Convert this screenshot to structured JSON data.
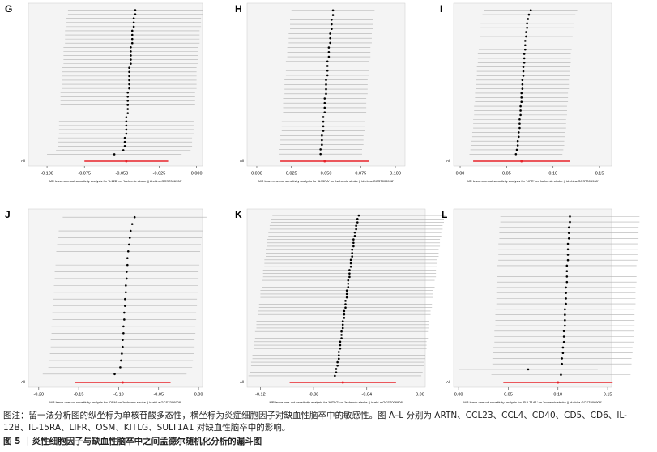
{
  "chart_data": [
    {
      "type": "forest",
      "panel": "G",
      "x_label": "MR leave-one-out sensitivity analysis for 'IL12B' on 'Ischemic stroke || id:ebi-a-GCST006908'",
      "values": [
        -0.041,
        -0.041,
        -0.042,
        -0.042,
        -0.042,
        -0.043,
        -0.043,
        -0.043,
        -0.043,
        -0.044,
        -0.044,
        -0.044,
        -0.044,
        -0.044,
        -0.045,
        -0.045,
        -0.045,
        -0.045,
        -0.045,
        -0.045,
        -0.046,
        -0.046,
        -0.046,
        -0.046,
        -0.046,
        -0.046,
        -0.047,
        -0.047,
        -0.047,
        -0.047,
        -0.047,
        -0.048,
        -0.048,
        -0.048,
        -0.049,
        -0.055
      ],
      "error": 0.045,
      "all_label": "All",
      "all_value": -0.047,
      "all_error": 0.028,
      "xlim": [
        -0.1125,
        0.004
      ],
      "xticks": [
        {
          "value": -0.1,
          "label": "-0.100"
        },
        {
          "value": -0.075,
          "label": "-0.075"
        },
        {
          "value": -0.05,
          "label": "-0.050"
        },
        {
          "value": -0.025,
          "label": "-0.025"
        },
        {
          "value": 0,
          "label": "0.000"
        }
      ],
      "point_color": "#000000",
      "line_color": "#b0b0b0",
      "all_color": "#e8232a"
    },
    {
      "type": "forest",
      "panel": "H",
      "x_label": "MR leave-one-out sensitivity analysis for 'IL15RA' on 'Ischemic stroke || id:ebi-a-GCST006908'",
      "values": [
        0.055,
        0.055,
        0.054,
        0.054,
        0.054,
        0.053,
        0.053,
        0.053,
        0.052,
        0.052,
        0.052,
        0.051,
        0.051,
        0.051,
        0.051,
        0.05,
        0.05,
        0.05,
        0.05,
        0.049,
        0.049,
        0.049,
        0.049,
        0.048,
        0.048,
        0.048,
        0.048,
        0.047,
        0.047,
        0.047,
        0.046,
        0.046
      ],
      "error": 0.03,
      "all_label": "All",
      "all_value": 0.049,
      "all_error": 0.032,
      "xlim": [
        -0.007,
        0.107
      ],
      "xticks": [
        {
          "value": 0,
          "label": "0.000"
        },
        {
          "value": 0.025,
          "label": "0.025"
        },
        {
          "value": 0.05,
          "label": "0.050"
        },
        {
          "value": 0.075,
          "label": "0.075"
        },
        {
          "value": 0.1,
          "label": "0.100"
        }
      ],
      "point_color": "#000000",
      "line_color": "#b0b0b0",
      "all_color": "#e8232a"
    },
    {
      "type": "forest",
      "panel": "I",
      "x_label": "MR leave-one-out sensitivity analysis for 'LIFR' on 'Ischemic stroke || id:ebi-a-GCST006908'",
      "values": [
        0.076,
        0.074,
        0.073,
        0.072,
        0.072,
        0.071,
        0.071,
        0.07,
        0.07,
        0.07,
        0.069,
        0.069,
        0.069,
        0.068,
        0.068,
        0.068,
        0.067,
        0.067,
        0.067,
        0.066,
        0.066,
        0.066,
        0.065,
        0.065,
        0.065,
        0.064,
        0.064,
        0.064,
        0.063,
        0.063,
        0.062,
        0.062,
        0.061,
        0.06
      ],
      "error": 0.05,
      "all_label": "All",
      "all_value": 0.066,
      "all_error": 0.052,
      "xlim": [
        -0.007,
        0.163
      ],
      "xticks": [
        {
          "value": 0,
          "label": "0.00"
        },
        0.05,
        {
          "value": 0.1,
          "label": "0.10"
        },
        0.15
      ],
      "point_color": "#000000",
      "line_color": "#b0b0b0",
      "all_color": "#e8232a"
    },
    {
      "type": "forest",
      "panel": "J",
      "x_label": "MR leave-one-out sensitivity analysis for 'OSM' on 'Ischemic stroke || id:ebi-a-GCST006908'",
      "values": [
        -0.08,
        -0.083,
        -0.085,
        -0.086,
        -0.087,
        -0.088,
        -0.089,
        -0.089,
        -0.09,
        -0.09,
        -0.091,
        -0.091,
        -0.092,
        -0.092,
        -0.093,
        -0.093,
        -0.094,
        -0.094,
        -0.095,
        -0.095,
        -0.096,
        -0.097,
        -0.098,
        -0.105
      ],
      "error": 0.09,
      "all_label": "All",
      "all_value": -0.095,
      "all_error": 0.06,
      "xlim": [
        -0.213,
        0.005
      ],
      "xticks": [
        {
          "value": -0.2,
          "label": "-0.20"
        },
        -0.15,
        {
          "value": -0.1,
          "label": "-0.10"
        },
        -0.05,
        {
          "value": 0,
          "label": "0.00"
        }
      ],
      "point_color": "#000000",
      "line_color": "#b0b0b0",
      "all_color": "#e8232a"
    },
    {
      "type": "forest",
      "panel": "K",
      "x_label": "MR leave-one-out sensitivity analysis for 'KITLG' on 'Ischemic stroke || id:ebi-a-GCST006908'",
      "values": [
        -0.046,
        -0.047,
        -0.047,
        -0.048,
        -0.048,
        -0.049,
        -0.049,
        -0.05,
        -0.05,
        -0.05,
        -0.051,
        -0.051,
        -0.051,
        -0.052,
        -0.052,
        -0.052,
        -0.053,
        -0.053,
        -0.053,
        -0.054,
        -0.054,
        -0.054,
        -0.055,
        -0.055,
        -0.055,
        -0.056,
        -0.056,
        -0.056,
        -0.057,
        -0.057,
        -0.057,
        -0.058,
        -0.058,
        -0.058,
        -0.059,
        -0.059,
        -0.059,
        -0.06,
        -0.06,
        -0.06,
        -0.061,
        -0.061,
        -0.061,
        -0.062,
        -0.062,
        -0.063,
        -0.063,
        -0.064
      ],
      "error": 0.065,
      "all_label": "All",
      "all_value": -0.058,
      "all_error": 0.04,
      "xlim": [
        -0.13,
        0.004
      ],
      "xticks": [
        {
          "value": -0.12,
          "label": "-0.12"
        },
        {
          "value": -0.08,
          "label": "-0.08"
        },
        {
          "value": -0.04,
          "label": "-0.04"
        },
        {
          "value": 0,
          "label": "0.00"
        }
      ],
      "point_color": "#000000",
      "line_color": "#b0b0b0",
      "all_color": "#e8232a"
    },
    {
      "type": "forest",
      "panel": "L",
      "x_label": "MR leave-one-out sensitivity analysis for 'SULT1A1' on 'Ischemic stroke || id:ebi-a-GCST006908'",
      "values": [
        0.112,
        0.112,
        0.111,
        0.111,
        0.111,
        0.11,
        0.11,
        0.11,
        0.11,
        0.109,
        0.109,
        0.109,
        0.109,
        0.108,
        0.108,
        0.108,
        0.108,
        0.107,
        0.107,
        0.107,
        0.107,
        0.106,
        0.106,
        0.106,
        0.105,
        0.105,
        0.104,
        0.104,
        0.07,
        0.103
      ],
      "error": 0.07,
      "all_label": "All",
      "all_value": 0.1,
      "all_error": 0.055,
      "xlim": [
        -0.005,
        0.154
      ],
      "xticks": [
        {
          "value": 0,
          "label": "0.00"
        },
        0.05,
        {
          "value": 0.1,
          "label": "0.10"
        },
        0.15
      ],
      "point_color": "#000000",
      "line_color": "#b0b0b0",
      "all_color": "#e8232a"
    }
  ],
  "caption": {
    "note": "图注：留一法分析图的纵坐标为单核苷酸多态性，横坐标为炎症细胞因子对缺血性脑卒中的敏感性。图 A–L 分别为 ARTN、CCL23、CCL4、CD40、CD5、CD6、IL-12B、IL-15RA、LIFR、OSM、KITLG、SULT1A1 对缺血性脑卒中的影响。",
    "title": "图 5 ｜炎性细胞因子与缺血性脑卒中之间孟德尔随机化分析的漏斗图"
  }
}
